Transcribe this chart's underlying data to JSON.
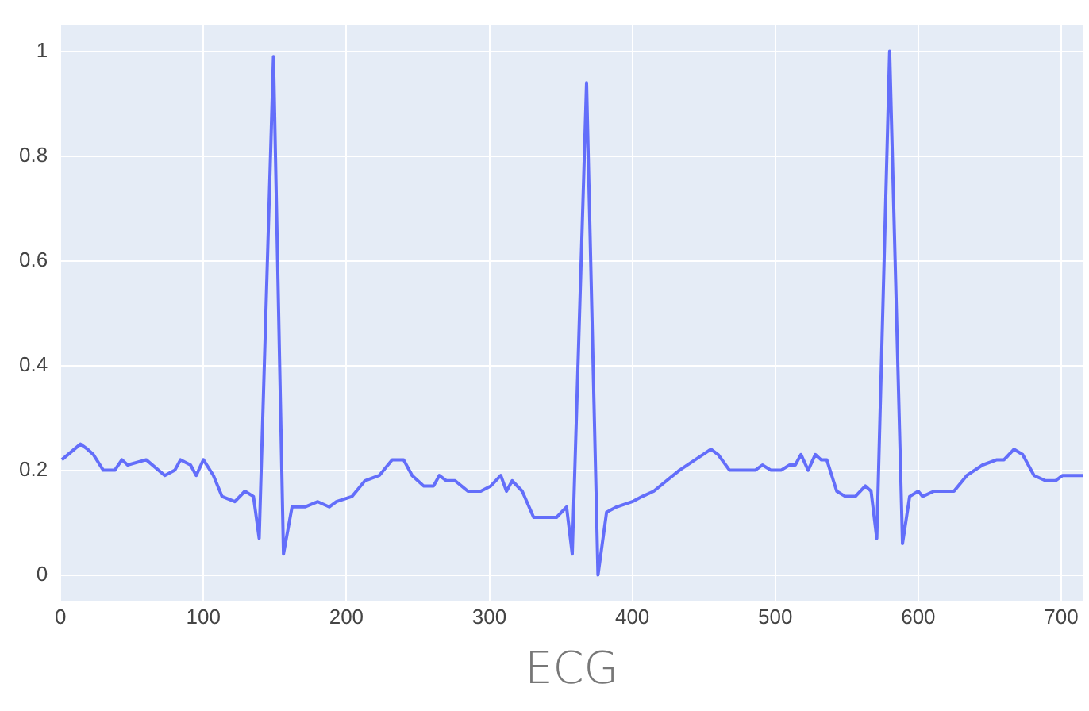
{
  "chart_data": {
    "type": "line",
    "xlabel": "ECG",
    "x": [
      1,
      14,
      19,
      23,
      30,
      38,
      43,
      47,
      60,
      73,
      80,
      84,
      91,
      95,
      100,
      107,
      113,
      122,
      129,
      135,
      139,
      149,
      156,
      162,
      171,
      180,
      188,
      193,
      204,
      213,
      223,
      232,
      240,
      246,
      254,
      261,
      265,
      270,
      276,
      285,
      290,
      294,
      301,
      308,
      312,
      316,
      323,
      331,
      338,
      342,
      347,
      354,
      358,
      368,
      376,
      382,
      389,
      400,
      407,
      415,
      424,
      433,
      444,
      455,
      460,
      468,
      477,
      486,
      491,
      497,
      504,
      510,
      514,
      518,
      523,
      528,
      532,
      536,
      543,
      549,
      556,
      563,
      567,
      571,
      580,
      589,
      594,
      600,
      603,
      611,
      616,
      625,
      634,
      645,
      655,
      660,
      667,
      673,
      681,
      689,
      696,
      701,
      709,
      715
    ],
    "series": [
      {
        "color": "#636efa",
        "values": [
          0.22,
          0.25,
          0.24,
          0.23,
          0.2,
          0.2,
          0.22,
          0.21,
          0.22,
          0.19,
          0.2,
          0.22,
          0.21,
          0.19,
          0.22,
          0.19,
          0.15,
          0.14,
          0.16,
          0.15,
          0.07,
          0.99,
          0.04,
          0.13,
          0.13,
          0.14,
          0.13,
          0.14,
          0.15,
          0.18,
          0.19,
          0.22,
          0.22,
          0.19,
          0.17,
          0.17,
          0.19,
          0.18,
          0.18,
          0.16,
          0.16,
          0.16,
          0.17,
          0.19,
          0.16,
          0.18,
          0.16,
          0.11,
          0.11,
          0.11,
          0.11,
          0.13,
          0.04,
          0.94,
          0,
          0.12,
          0.13,
          0.14,
          0.15,
          0.16,
          0.18,
          0.2,
          0.22,
          0.24,
          0.23,
          0.2,
          0.2,
          0.2,
          0.21,
          0.2,
          0.2,
          0.21,
          0.21,
          0.23,
          0.2,
          0.23,
          0.22,
          0.22,
          0.16,
          0.15,
          0.15,
          0.17,
          0.16,
          0.07,
          1,
          0.06,
          0.15,
          0.16,
          0.15,
          0.16,
          0.16,
          0.16,
          0.19,
          0.21,
          0.22,
          0.22,
          0.24,
          0.23,
          0.19,
          0.18,
          0.18,
          0.19,
          0.19,
          0.19
        ]
      }
    ],
    "xlim": [
      0,
      715
    ],
    "xticks": [
      0,
      100,
      200,
      300,
      400,
      500,
      600,
      700
    ],
    "ylim": [
      -0.05,
      1.05
    ],
    "yticks": [
      0,
      0.2,
      0.4,
      0.6,
      0.8,
      1
    ],
    "grid": true,
    "legend": false,
    "marker": "none",
    "line_style": "solid"
  }
}
